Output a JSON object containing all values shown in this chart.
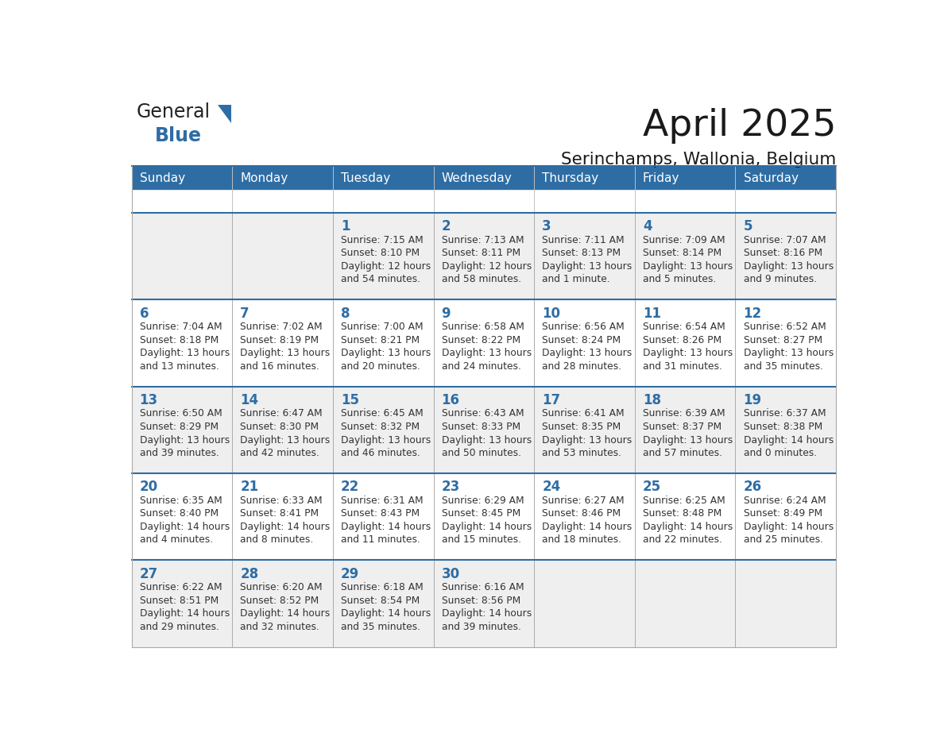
{
  "title": "April 2025",
  "subtitle": "Serinchamps, Wallonia, Belgium",
  "days_of_week": [
    "Sunday",
    "Monday",
    "Tuesday",
    "Wednesday",
    "Thursday",
    "Friday",
    "Saturday"
  ],
  "header_bg": "#2E6DA4",
  "header_text": "#FFFFFF",
  "row_bg_even": "#EFEFEF",
  "row_bg_odd": "#FFFFFF",
  "border_color": "#2E6DA4",
  "inner_border_color": "#AAAAAA",
  "day_number_color": "#2E6DA4",
  "text_color": "#333333",
  "title_color": "#1a1a1a",
  "logo_general_color": "#222222",
  "logo_blue_color": "#2E6DA4",
  "weeks": [
    [
      {
        "day": "",
        "lines": []
      },
      {
        "day": "",
        "lines": []
      },
      {
        "day": "1",
        "lines": [
          "Sunrise: 7:15 AM",
          "Sunset: 8:10 PM",
          "Daylight: 12 hours",
          "and 54 minutes."
        ]
      },
      {
        "day": "2",
        "lines": [
          "Sunrise: 7:13 AM",
          "Sunset: 8:11 PM",
          "Daylight: 12 hours",
          "and 58 minutes."
        ]
      },
      {
        "day": "3",
        "lines": [
          "Sunrise: 7:11 AM",
          "Sunset: 8:13 PM",
          "Daylight: 13 hours",
          "and 1 minute."
        ]
      },
      {
        "day": "4",
        "lines": [
          "Sunrise: 7:09 AM",
          "Sunset: 8:14 PM",
          "Daylight: 13 hours",
          "and 5 minutes."
        ]
      },
      {
        "day": "5",
        "lines": [
          "Sunrise: 7:07 AM",
          "Sunset: 8:16 PM",
          "Daylight: 13 hours",
          "and 9 minutes."
        ]
      }
    ],
    [
      {
        "day": "6",
        "lines": [
          "Sunrise: 7:04 AM",
          "Sunset: 8:18 PM",
          "Daylight: 13 hours",
          "and 13 minutes."
        ]
      },
      {
        "day": "7",
        "lines": [
          "Sunrise: 7:02 AM",
          "Sunset: 8:19 PM",
          "Daylight: 13 hours",
          "and 16 minutes."
        ]
      },
      {
        "day": "8",
        "lines": [
          "Sunrise: 7:00 AM",
          "Sunset: 8:21 PM",
          "Daylight: 13 hours",
          "and 20 minutes."
        ]
      },
      {
        "day": "9",
        "lines": [
          "Sunrise: 6:58 AM",
          "Sunset: 8:22 PM",
          "Daylight: 13 hours",
          "and 24 minutes."
        ]
      },
      {
        "day": "10",
        "lines": [
          "Sunrise: 6:56 AM",
          "Sunset: 8:24 PM",
          "Daylight: 13 hours",
          "and 28 minutes."
        ]
      },
      {
        "day": "11",
        "lines": [
          "Sunrise: 6:54 AM",
          "Sunset: 8:26 PM",
          "Daylight: 13 hours",
          "and 31 minutes."
        ]
      },
      {
        "day": "12",
        "lines": [
          "Sunrise: 6:52 AM",
          "Sunset: 8:27 PM",
          "Daylight: 13 hours",
          "and 35 minutes."
        ]
      }
    ],
    [
      {
        "day": "13",
        "lines": [
          "Sunrise: 6:50 AM",
          "Sunset: 8:29 PM",
          "Daylight: 13 hours",
          "and 39 minutes."
        ]
      },
      {
        "day": "14",
        "lines": [
          "Sunrise: 6:47 AM",
          "Sunset: 8:30 PM",
          "Daylight: 13 hours",
          "and 42 minutes."
        ]
      },
      {
        "day": "15",
        "lines": [
          "Sunrise: 6:45 AM",
          "Sunset: 8:32 PM",
          "Daylight: 13 hours",
          "and 46 minutes."
        ]
      },
      {
        "day": "16",
        "lines": [
          "Sunrise: 6:43 AM",
          "Sunset: 8:33 PM",
          "Daylight: 13 hours",
          "and 50 minutes."
        ]
      },
      {
        "day": "17",
        "lines": [
          "Sunrise: 6:41 AM",
          "Sunset: 8:35 PM",
          "Daylight: 13 hours",
          "and 53 minutes."
        ]
      },
      {
        "day": "18",
        "lines": [
          "Sunrise: 6:39 AM",
          "Sunset: 8:37 PM",
          "Daylight: 13 hours",
          "and 57 minutes."
        ]
      },
      {
        "day": "19",
        "lines": [
          "Sunrise: 6:37 AM",
          "Sunset: 8:38 PM",
          "Daylight: 14 hours",
          "and 0 minutes."
        ]
      }
    ],
    [
      {
        "day": "20",
        "lines": [
          "Sunrise: 6:35 AM",
          "Sunset: 8:40 PM",
          "Daylight: 14 hours",
          "and 4 minutes."
        ]
      },
      {
        "day": "21",
        "lines": [
          "Sunrise: 6:33 AM",
          "Sunset: 8:41 PM",
          "Daylight: 14 hours",
          "and 8 minutes."
        ]
      },
      {
        "day": "22",
        "lines": [
          "Sunrise: 6:31 AM",
          "Sunset: 8:43 PM",
          "Daylight: 14 hours",
          "and 11 minutes."
        ]
      },
      {
        "day": "23",
        "lines": [
          "Sunrise: 6:29 AM",
          "Sunset: 8:45 PM",
          "Daylight: 14 hours",
          "and 15 minutes."
        ]
      },
      {
        "day": "24",
        "lines": [
          "Sunrise: 6:27 AM",
          "Sunset: 8:46 PM",
          "Daylight: 14 hours",
          "and 18 minutes."
        ]
      },
      {
        "day": "25",
        "lines": [
          "Sunrise: 6:25 AM",
          "Sunset: 8:48 PM",
          "Daylight: 14 hours",
          "and 22 minutes."
        ]
      },
      {
        "day": "26",
        "lines": [
          "Sunrise: 6:24 AM",
          "Sunset: 8:49 PM",
          "Daylight: 14 hours",
          "and 25 minutes."
        ]
      }
    ],
    [
      {
        "day": "27",
        "lines": [
          "Sunrise: 6:22 AM",
          "Sunset: 8:51 PM",
          "Daylight: 14 hours",
          "and 29 minutes."
        ]
      },
      {
        "day": "28",
        "lines": [
          "Sunrise: 6:20 AM",
          "Sunset: 8:52 PM",
          "Daylight: 14 hours",
          "and 32 minutes."
        ]
      },
      {
        "day": "29",
        "lines": [
          "Sunrise: 6:18 AM",
          "Sunset: 8:54 PM",
          "Daylight: 14 hours",
          "and 35 minutes."
        ]
      },
      {
        "day": "30",
        "lines": [
          "Sunrise: 6:16 AM",
          "Sunset: 8:56 PM",
          "Daylight: 14 hours",
          "and 39 minutes."
        ]
      },
      {
        "day": "",
        "lines": []
      },
      {
        "day": "",
        "lines": []
      },
      {
        "day": "",
        "lines": []
      }
    ]
  ]
}
